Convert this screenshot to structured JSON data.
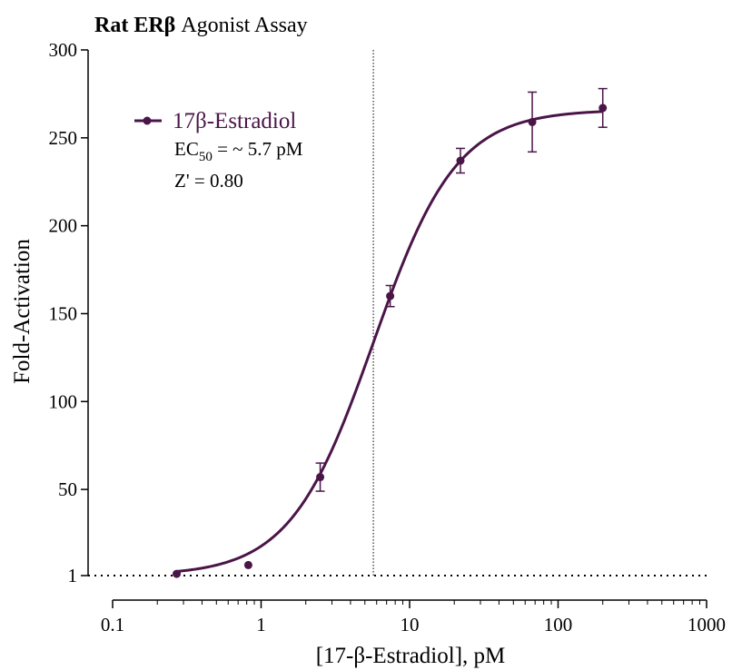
{
  "chart_data": {
    "type": "scatter",
    "title_bold": "Rat ERβ",
    "title_rest": " Agonist Assay",
    "xlabel": "[17-β-Estradiol], pM",
    "ylabel": "Fold-Activation",
    "x_scale": "log",
    "xlim": [
      0.1,
      1000
    ],
    "ylim": [
      1,
      300
    ],
    "x_ticks": [
      {
        "value": 0.1,
        "label": "0.1"
      },
      {
        "value": 1,
        "label": "1"
      },
      {
        "value": 10,
        "label": "10"
      },
      {
        "value": 100,
        "label": "100"
      },
      {
        "value": 1000,
        "label": "1000"
      }
    ],
    "y_ticks": [
      {
        "value": 1,
        "label": "1"
      },
      {
        "value": 50,
        "label": "50"
      },
      {
        "value": 100,
        "label": "100"
      },
      {
        "value": 150,
        "label": "150"
      },
      {
        "value": 200,
        "label": "200"
      },
      {
        "value": 250,
        "label": "250"
      },
      {
        "value": 300,
        "label": "300"
      }
    ],
    "grid": false,
    "legend_position": "top-left",
    "color": "#4a1548",
    "series": [
      {
        "name": "17β-Estradiol",
        "points": [
          {
            "x": 0.27,
            "y": 2,
            "err": 0
          },
          {
            "x": 0.82,
            "y": 7,
            "err": 0
          },
          {
            "x": 2.5,
            "y": 57,
            "err": 8
          },
          {
            "x": 7.4,
            "y": 160,
            "err": 6
          },
          {
            "x": 22,
            "y": 237,
            "err": 7
          },
          {
            "x": 67,
            "y": 259,
            "err": 17
          },
          {
            "x": 200,
            "y": 267,
            "err": 11
          }
        ],
        "fit": {
          "bottom": 1,
          "top": 266,
          "ec50": 5.7,
          "hill": 1.55
        }
      }
    ],
    "annotations": {
      "ec50_prefix": "EC",
      "ec50_sub": "50",
      "ec50_suffix": " = ~ 5.7 pM",
      "z_prime": "Z' = 0.80"
    },
    "reference_lines": {
      "vertical_x": 5.7,
      "horizontal_y": 1
    }
  }
}
